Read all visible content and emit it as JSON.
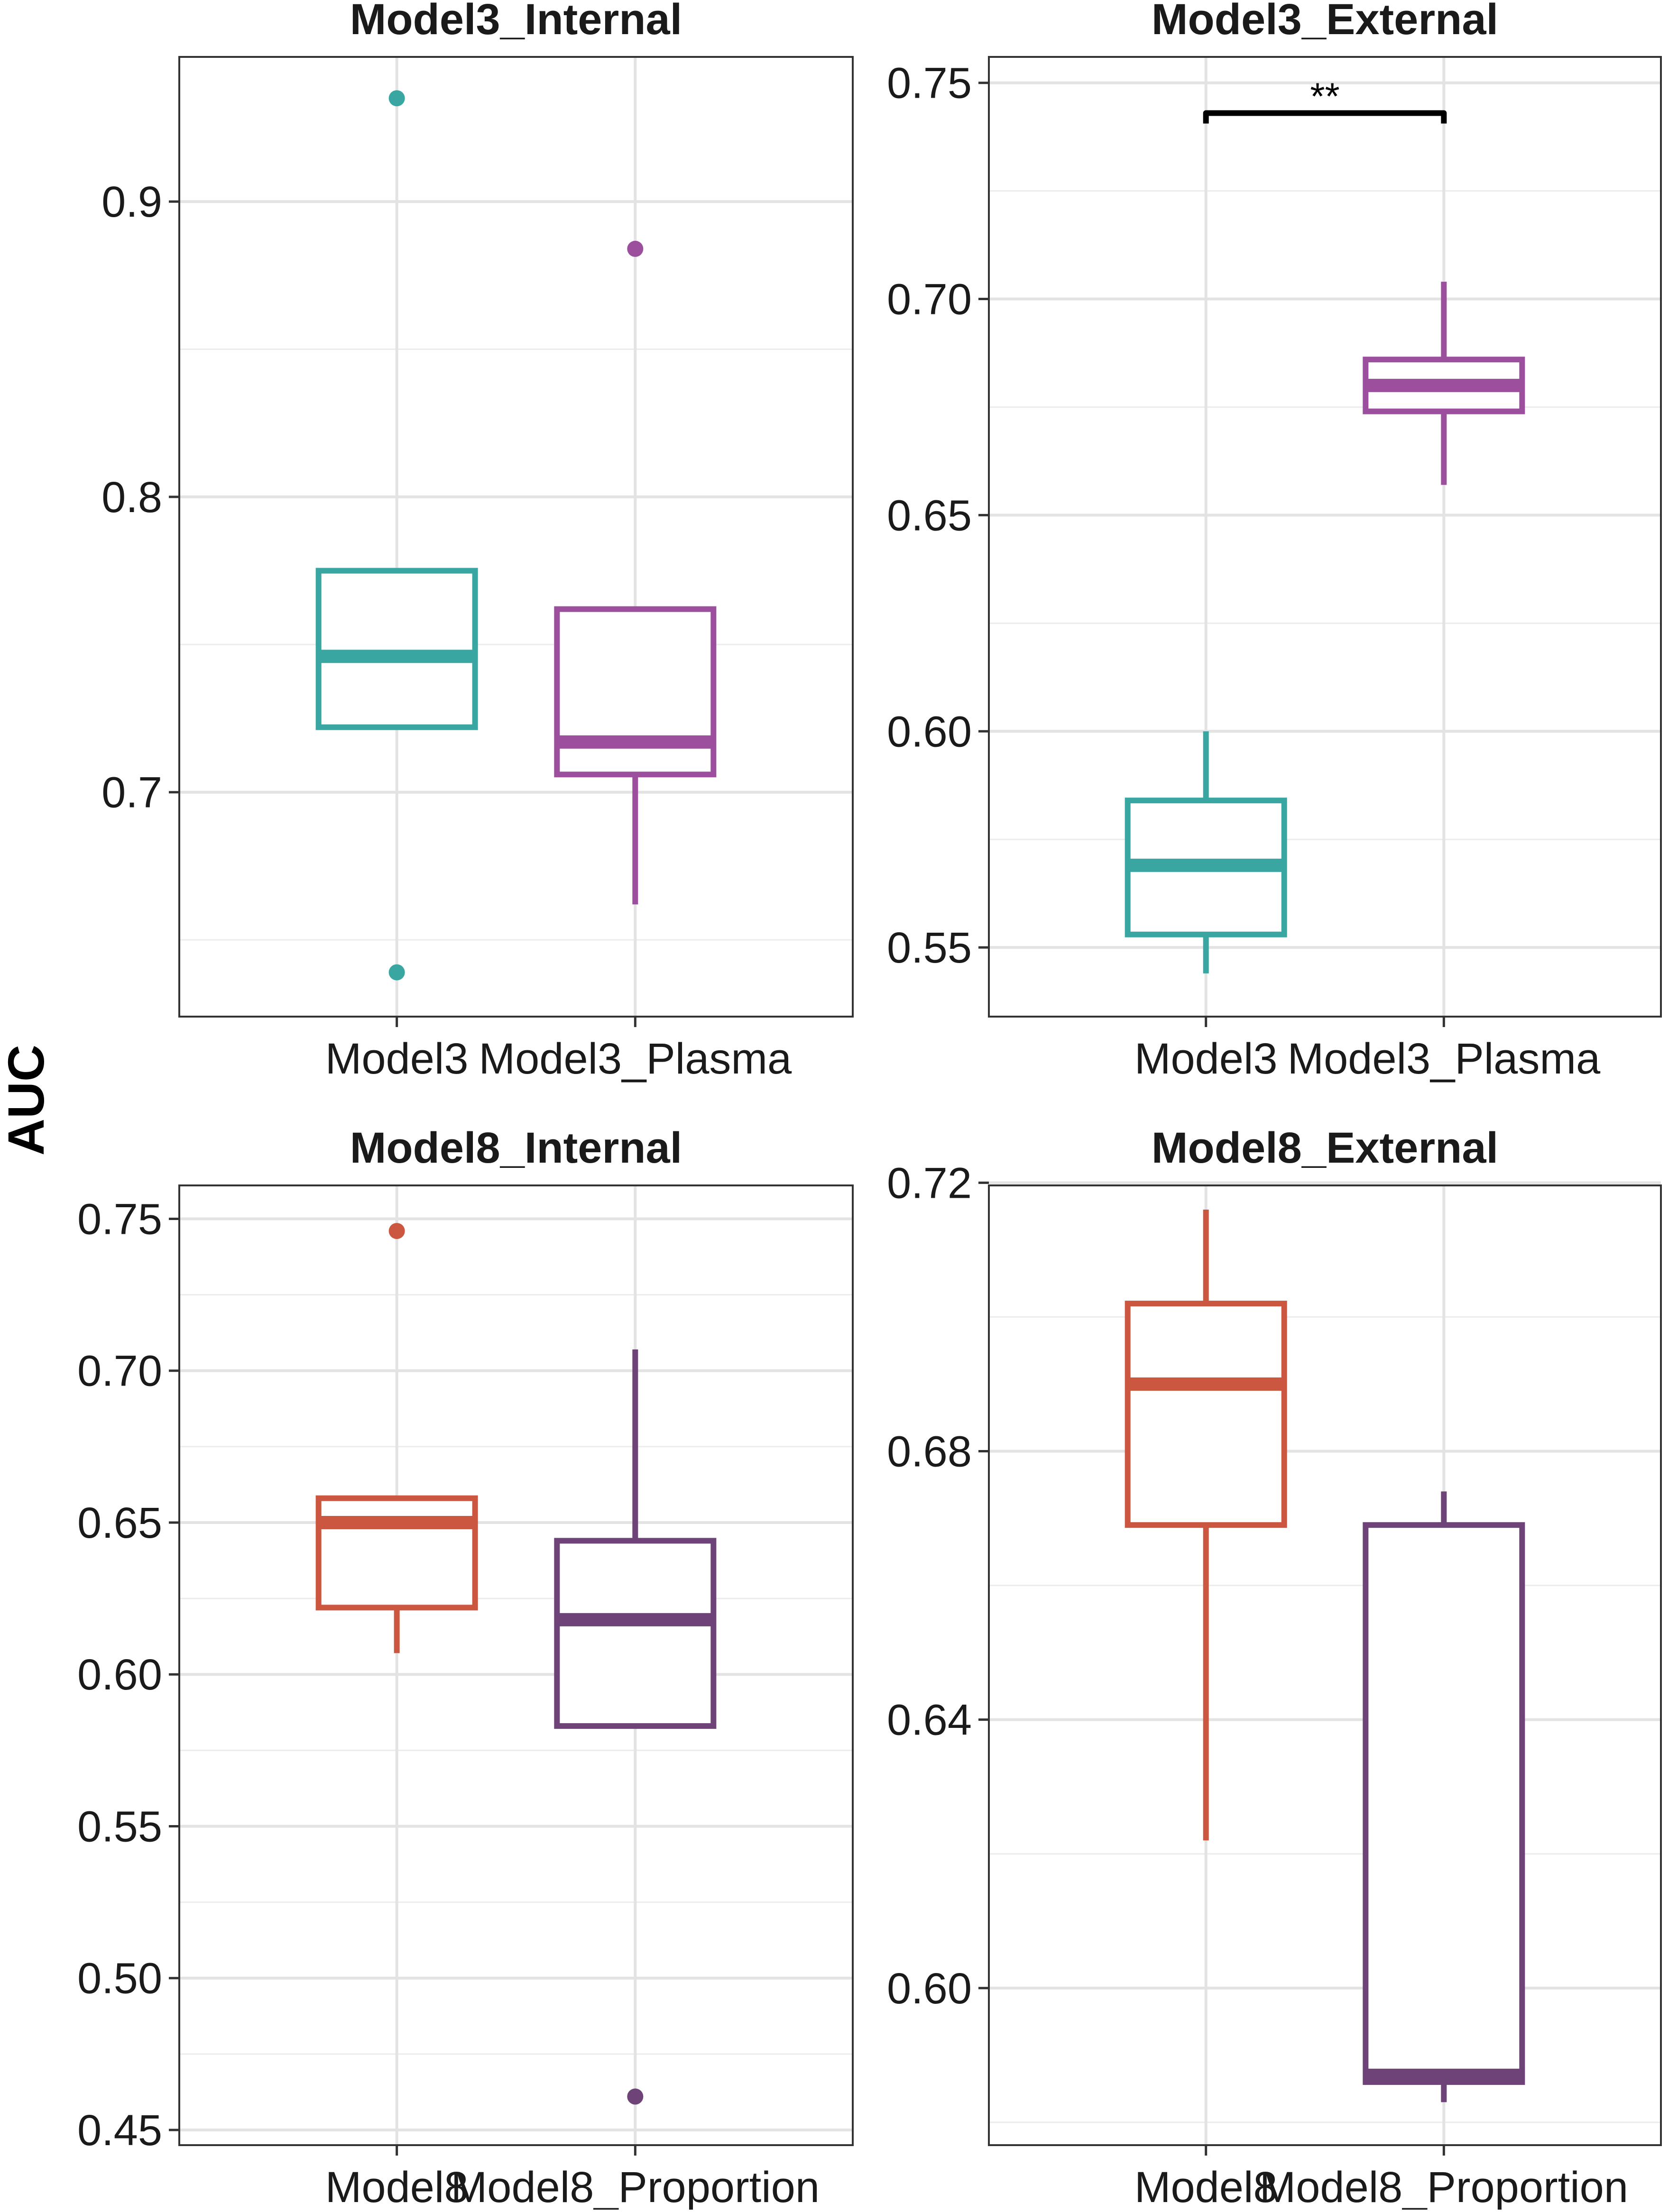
{
  "figure": {
    "ylabel": "AUC"
  },
  "chart_data": [
    {
      "type": "boxplot",
      "title": "Model3_Internal",
      "ylabel": "AUC",
      "ylim": [
        0.624,
        0.949
      ],
      "major_ticks": [
        0.7,
        0.8,
        0.9
      ],
      "tick_labels": [
        "0.7",
        "0.8",
        "0.9"
      ],
      "minor_ticks": [
        0.65,
        0.75,
        0.85
      ],
      "categories": [
        "Model3",
        "Model3_Plasma"
      ],
      "colors": [
        "#3aa6a2",
        "#9b4f9d"
      ],
      "boxes": [
        {
          "category": "Model3",
          "min": 0.722,
          "q1": 0.722,
          "median": 0.746,
          "q3": 0.775,
          "max": 0.775,
          "outliers": [
            0.935,
            0.639
          ]
        },
        {
          "category": "Model3_Plasma",
          "min": 0.662,
          "q1": 0.706,
          "median": 0.717,
          "q3": 0.762,
          "max": 0.762,
          "outliers": [
            0.884
          ]
        }
      ],
      "significance": null
    },
    {
      "type": "boxplot",
      "title": "Model3_External",
      "ylabel": "AUC",
      "ylim": [
        0.534,
        0.756
      ],
      "major_ticks": [
        0.55,
        0.6,
        0.65,
        0.7,
        0.75
      ],
      "tick_labels": [
        "0.55",
        "0.60",
        "0.65",
        "0.70",
        "0.75"
      ],
      "minor_ticks": [
        0.575,
        0.625,
        0.675,
        0.725
      ],
      "categories": [
        "Model3",
        "Model3_Plasma"
      ],
      "colors": [
        "#3aa6a2",
        "#9b4f9d"
      ],
      "boxes": [
        {
          "category": "Model3",
          "min": 0.544,
          "q1": 0.553,
          "median": 0.569,
          "q3": 0.584,
          "max": 0.6,
          "outliers": []
        },
        {
          "category": "Model3_Plasma",
          "min": 0.657,
          "q1": 0.674,
          "median": 0.68,
          "q3": 0.686,
          "max": 0.704,
          "outliers": []
        }
      ],
      "significance": {
        "label": "**",
        "y": 0.743,
        "between": [
          "Model3",
          "Model3_Plasma"
        ]
      }
    },
    {
      "type": "boxplot",
      "title": "Model8_Internal",
      "ylabel": "AUC",
      "ylim": [
        0.445,
        0.761
      ],
      "major_ticks": [
        0.45,
        0.5,
        0.55,
        0.6,
        0.65,
        0.7,
        0.75
      ],
      "tick_labels": [
        "0.45",
        "0.50",
        "0.55",
        "0.60",
        "0.65",
        "0.70",
        "0.75"
      ],
      "minor_ticks": [
        0.475,
        0.525,
        0.575,
        0.625,
        0.675,
        0.725
      ],
      "categories": [
        "Model8",
        "Model8_Proportion"
      ],
      "colors": [
        "#cc5740",
        "#6e4377"
      ],
      "boxes": [
        {
          "category": "Model8",
          "min": 0.607,
          "q1": 0.622,
          "median": 0.65,
          "q3": 0.658,
          "max": 0.658,
          "outliers": [
            0.746
          ]
        },
        {
          "category": "Model8_Proportion",
          "min": 0.583,
          "q1": 0.583,
          "median": 0.618,
          "q3": 0.644,
          "max": 0.707,
          "outliers": [
            0.461
          ]
        }
      ],
      "significance": null
    },
    {
      "type": "boxplot",
      "title": "Model8_External",
      "ylabel": "AUC",
      "ylim": [
        0.5766,
        0.7196
      ],
      "major_ticks": [
        0.6,
        0.64,
        0.68,
        0.72
      ],
      "tick_labels": [
        "0.60",
        "0.64",
        "0.68",
        "0.72"
      ],
      "minor_ticks": [
        0.58,
        0.62,
        0.66,
        0.7
      ],
      "categories": [
        "Model8",
        "Model8_Proportion"
      ],
      "colors": [
        "#cc5740",
        "#6e4377"
      ],
      "boxes": [
        {
          "category": "Model8",
          "min": 0.622,
          "q1": 0.669,
          "median": 0.69,
          "q3": 0.702,
          "max": 0.716,
          "outliers": []
        },
        {
          "category": "Model8_Proportion",
          "min": 0.583,
          "q1": 0.586,
          "median": 0.587,
          "q3": 0.669,
          "max": 0.674,
          "outliers": []
        }
      ],
      "significance": null
    }
  ]
}
